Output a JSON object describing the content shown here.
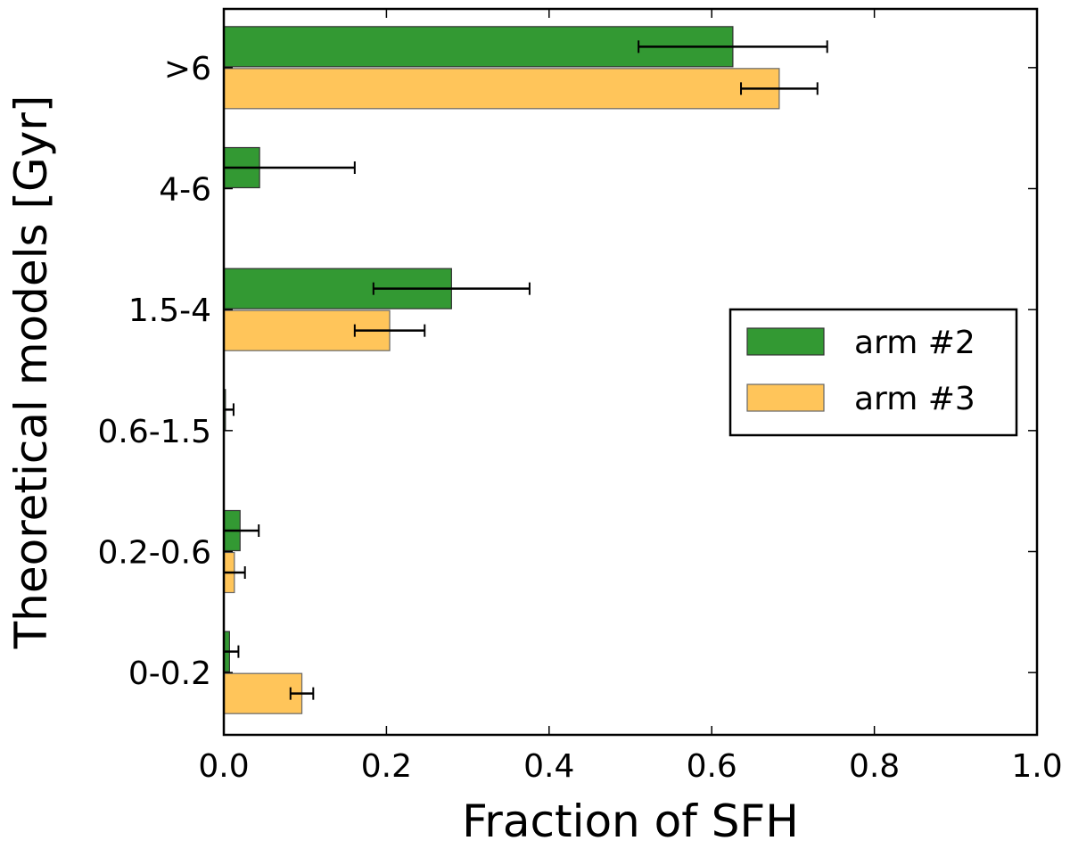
{
  "chart_data": {
    "type": "bar",
    "orientation": "horizontal",
    "title": "",
    "xlabel": "Fraction of SFH",
    "ylabel": "Theoretical models [Gyr]",
    "xlim": [
      0.0,
      1.0
    ],
    "x_ticks": [
      "0.0",
      "0.2",
      "0.4",
      "0.6",
      "0.8",
      "1.0"
    ],
    "categories": [
      "0-0.2",
      "0.2-0.6",
      "0.6-1.5",
      "1.5-4",
      "4-6",
      ">6"
    ],
    "series": [
      {
        "name": "arm #2",
        "color": "#339933",
        "values": [
          0.007,
          0.02,
          0.002,
          0.28,
          0.044,
          0.626
        ],
        "errors": [
          0.011,
          0.023,
          0.01,
          0.096,
          0.117,
          0.116
        ]
      },
      {
        "name": "arm #3",
        "color": "#ffc55a",
        "values": [
          0.096,
          0.013,
          0.0,
          0.204,
          0.0,
          0.683
        ],
        "errors": [
          0.014,
          0.013,
          0.0,
          0.043,
          0.0,
          0.047
        ]
      }
    ],
    "legend_position": "right",
    "grid": false
  }
}
